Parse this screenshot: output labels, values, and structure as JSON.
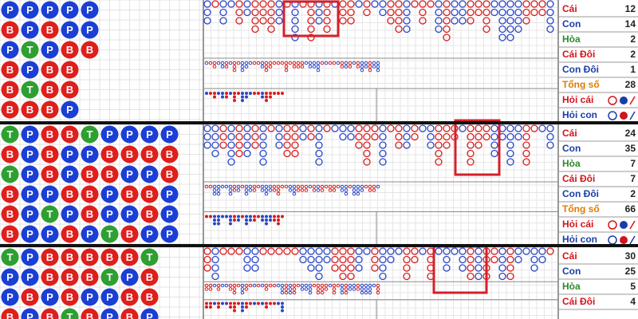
{
  "panels": [
    {
      "beads": [
        [
          "P",
          "P",
          "P",
          "P",
          "P"
        ],
        [
          "B",
          "P",
          "B",
          "P",
          "P"
        ],
        [
          "P",
          "T",
          "P",
          "B",
          "B"
        ],
        [
          "B",
          "P",
          "B",
          "B"
        ],
        [
          "B",
          "T",
          "B",
          "B"
        ],
        [
          "B",
          "B",
          "B",
          "P"
        ]
      ],
      "stats": [
        {
          "label": "Cái",
          "value": 12
        },
        {
          "label": "Con",
          "value": 14
        },
        {
          "label": "Hòa",
          "value": 2
        },
        {
          "label": "Cái Đôi",
          "value": 2
        },
        {
          "label": "Con Đôi",
          "value": 1
        },
        {
          "label": "Tổng số",
          "value": 28
        },
        {
          "label": "Hỏi cái"
        },
        {
          "label": "Hỏi con"
        }
      ]
    },
    {
      "beads": [
        [
          "T",
          "P",
          "B",
          "B",
          "T",
          "P",
          "P",
          "P",
          "P"
        ],
        [
          "B",
          "P",
          "B",
          "P",
          "P",
          "B",
          "B",
          "B",
          "B"
        ],
        [
          "T",
          "P",
          "B",
          "P",
          "B",
          "B",
          "P",
          "P",
          "B"
        ],
        [
          "B",
          "P",
          "P",
          "B",
          "B",
          "P",
          "B",
          "B",
          "P"
        ],
        [
          "B",
          "P",
          "T",
          "P",
          "B",
          "P",
          "P",
          "B",
          "P"
        ],
        [
          "B",
          "P",
          "P",
          "B",
          "P",
          "T",
          "B",
          "P",
          "P"
        ]
      ],
      "stats": [
        {
          "label": "Cái",
          "value": 24
        },
        {
          "label": "Con",
          "value": 35
        },
        {
          "label": "Hòa",
          "value": 7
        },
        {
          "label": "Cái Đôi",
          "value": 7
        },
        {
          "label": "Con Đôi",
          "value": 2
        },
        {
          "label": "Tổng số",
          "value": 66
        },
        {
          "label": "Hỏi cái"
        },
        {
          "label": "Hỏi con"
        }
      ]
    },
    {
      "beads": [
        [
          "T",
          "P",
          "B",
          "B",
          "B",
          "B",
          "B",
          "T"
        ],
        [
          "P",
          "P",
          "B",
          "B",
          "B",
          "T",
          "P",
          "B"
        ],
        [
          "P",
          "B",
          "P",
          "B",
          "P",
          "P",
          "B",
          "B"
        ],
        [
          "B",
          "P",
          "B",
          "T",
          "B",
          "P",
          "B",
          "P"
        ]
      ],
      "stats": [
        {
          "label": "Cái",
          "value": 30
        },
        {
          "label": "Con",
          "value": 25
        },
        {
          "label": "Hòa",
          "value": 5
        },
        {
          "label": "Cái Đôi",
          "value": 4
        }
      ]
    }
  ]
}
